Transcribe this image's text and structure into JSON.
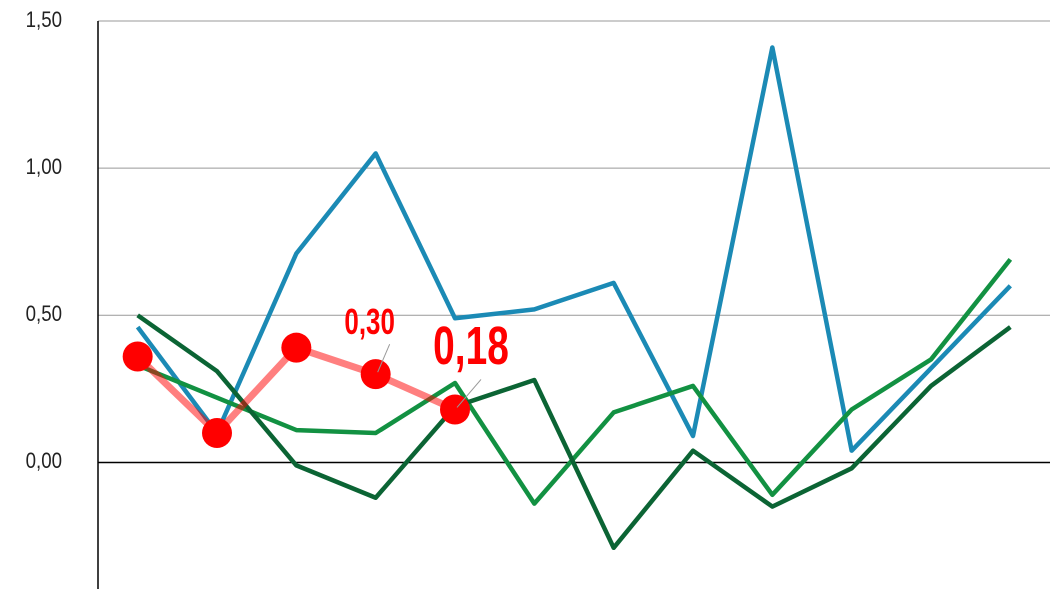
{
  "chart_data": {
    "type": "line",
    "categories": [
      null,
      null,
      null,
      null,
      null,
      null,
      null,
      null,
      null,
      null,
      null,
      null
    ],
    "series": [
      {
        "color": "#1b8ab5",
        "values": [
          0.46,
          0.1,
          0.71,
          1.05,
          0.49,
          0.52,
          0.61,
          0.09,
          1.41,
          0.04,
          0.32,
          0.6
        ]
      },
      {
        "color": "#129142",
        "values": [
          0.33,
          0.22,
          0.11,
          0.1,
          0.27,
          -0.14,
          0.17,
          0.26,
          -0.11,
          0.18,
          0.35,
          0.69
        ]
      },
      {
        "color": "#0b6434",
        "values": [
          0.5,
          0.31,
          -0.01,
          -0.12,
          0.19,
          0.28,
          -0.29,
          0.04,
          -0.15,
          -0.02,
          0.26,
          0.46
        ]
      },
      {
        "color": "#ff0000",
        "values": [
          0.36,
          0.1,
          0.39,
          0.3,
          0.18,
          null,
          null,
          null,
          null,
          null,
          null,
          null
        ],
        "value_labels": [
          null,
          null,
          null,
          "0,30",
          "0,18",
          null,
          null,
          null,
          null,
          null,
          null,
          null
        ]
      }
    ],
    "ylim": [
      -0.43,
      1.5
    ],
    "yticks": [
      {
        "value": 1.5,
        "label": "1,50"
      },
      {
        "value": 1.0,
        "label": "1,00"
      },
      {
        "value": 0.5,
        "label": "0,50"
      },
      {
        "value": 0,
        "label": "0,00"
      }
    ],
    "grid": true
  }
}
